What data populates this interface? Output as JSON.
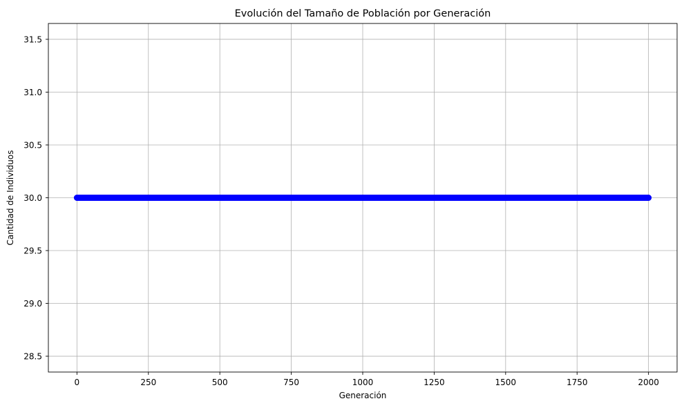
{
  "chart_data": {
    "type": "line",
    "title": "Evolución del Tamaño de Población por Generación",
    "xlabel": "Generación",
    "ylabel": "Cantidad de Individuos",
    "xlim": [
      -100,
      2100
    ],
    "ylim": [
      28.35,
      31.65
    ],
    "x_ticks": [
      0,
      250,
      500,
      750,
      1000,
      1250,
      1500,
      1750,
      2000
    ],
    "x_tick_labels": [
      "0",
      "250",
      "500",
      "750",
      "1000",
      "1250",
      "1500",
      "1750",
      "2000"
    ],
    "y_ticks": [
      28.5,
      29.0,
      29.5,
      30.0,
      30.5,
      31.0,
      31.5
    ],
    "y_tick_labels": [
      "28.5",
      "29.0",
      "29.5",
      "30.0",
      "30.5",
      "31.0",
      "31.5"
    ],
    "grid": true,
    "legend": "none",
    "series": [
      {
        "color": "#0000ff",
        "marker": "circle",
        "x_start": 0,
        "x_end": 2000,
        "x_step": 1,
        "y_constant": 30.0
      }
    ]
  }
}
